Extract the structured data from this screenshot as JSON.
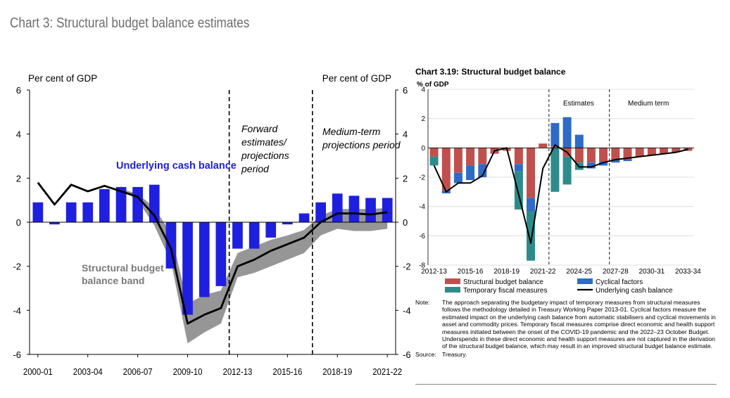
{
  "page_title": "Chart 3: Structural budget balance estimates",
  "chart_data": [
    {
      "type": "bar",
      "ylabel_left": "Per cent of GDP",
      "ylabel_right": "Per cent of GDP",
      "ylim": [
        -6,
        6
      ],
      "yticks": [
        -6,
        -4,
        -2,
        0,
        2,
        4,
        6
      ],
      "categories": [
        "2000-01",
        "2001-02",
        "2002-03",
        "2003-04",
        "2004-05",
        "2005-06",
        "2006-07",
        "2007-08",
        "2008-09",
        "2009-10",
        "2010-11",
        "2011-12",
        "2012-13",
        "2013-14",
        "2014-15",
        "2015-16",
        "2016-17",
        "2017-18",
        "2018-19",
        "2019-20",
        "2020-21",
        "2021-22"
      ],
      "xtick_labels": [
        "2000-01",
        "2003-04",
        "2006-07",
        "2009-10",
        "2012-13",
        "2015-16",
        "2018-19",
        "2021-22"
      ],
      "series": [
        {
          "name": "Underlying cash balance",
          "kind": "bar",
          "color": "#1f1fe0",
          "values": [
            0.9,
            -0.1,
            0.9,
            0.9,
            1.5,
            1.6,
            1.6,
            1.7,
            -2.1,
            -4.2,
            -3.4,
            -2.9,
            -1.2,
            -1.2,
            -0.7,
            -0.1,
            0.4,
            0.9,
            1.3,
            1.2,
            1.1,
            1.1
          ]
        },
        {
          "name": "Structural budget balance band",
          "kind": "band",
          "color": "#969696",
          "upper": [
            1.7,
            0.8,
            1.6,
            1.45,
            1.6,
            1.5,
            1.3,
            0.65,
            -0.5,
            -3.7,
            -3.3,
            -3.1,
            -1.4,
            -1.1,
            -0.8,
            -0.6,
            -0.35,
            0.3,
            0.6,
            0.6,
            0.6,
            0.65
          ],
          "lower": [
            1.7,
            0.8,
            1.6,
            1.45,
            1.6,
            1.5,
            1.0,
            -0.15,
            -1.8,
            -5.5,
            -5.0,
            -4.6,
            -2.5,
            -2.3,
            -2.0,
            -1.7,
            -1.4,
            -0.6,
            -0.3,
            -0.4,
            -0.4,
            -0.3
          ]
        },
        {
          "name": "",
          "kind": "line",
          "color": "#000000",
          "values": [
            1.8,
            0.8,
            1.7,
            1.4,
            1.65,
            1.4,
            1.15,
            0.3,
            -1.2,
            -4.6,
            -4.2,
            -3.9,
            -2.0,
            -1.7,
            -1.3,
            -1.0,
            -0.7,
            0.0,
            0.4,
            0.4,
            0.35,
            0.45
          ]
        }
      ],
      "annotations": [
        {
          "text": "Underlying cash balance",
          "color": "#1f1fe0"
        },
        {
          "text": "Structural budget balance band",
          "lines": [
            "Structural budget",
            "balance band"
          ],
          "color": "#7a7a7a"
        },
        {
          "text": "Forward estimates/ projections period",
          "lines": [
            "Forward",
            "estimates/",
            "projections",
            "period"
          ],
          "color": "#000000"
        },
        {
          "text": "Medium-term projections period",
          "lines": [
            "Medium-term",
            "projections period"
          ],
          "color": "#000000"
        }
      ],
      "dividers_after_index": [
        11,
        16
      ]
    },
    {
      "type": "bar",
      "title": "Chart 3.19: Structural budget balance",
      "ylabel": "% of GDP",
      "ylim": [
        -8,
        4
      ],
      "yticks": [
        -8,
        -6,
        -4,
        -2,
        0,
        2,
        4
      ],
      "categories": [
        "2012-13",
        "2013-14",
        "2014-15",
        "2015-16",
        "2016-17",
        "2017-18",
        "2018-19",
        "2019-20",
        "2020-21",
        "2021-22",
        "2022-23",
        "2023-24",
        "2024-25",
        "2025-26",
        "2026-27",
        "2027-28",
        "2028-29",
        "2029-30",
        "2030-31",
        "2031-32",
        "2032-33",
        "2033-34"
      ],
      "xtick_labels": [
        "2012-13",
        "2015-16",
        "2018-19",
        "2021-22",
        "2024-25",
        "2027-28",
        "2030-31",
        "2033-34"
      ],
      "series": [
        {
          "name": "Structural budget balance",
          "color": "#c0504d",
          "values": [
            -0.6,
            -2.9,
            -1.7,
            -1.2,
            -1.1,
            -0.4,
            -0.2,
            -1.1,
            -3.4,
            0.3,
            0.1,
            -0.6,
            -1.0,
            -1.0,
            -0.9,
            -0.8,
            -0.8,
            -0.6,
            -0.5,
            -0.4,
            -0.3,
            -0.2
          ]
        },
        {
          "name": "Cyclical factors",
          "color": "#2e6bc7",
          "values": [
            0.0,
            -0.2,
            -0.7,
            -1.0,
            -0.9,
            0.0,
            0.0,
            -0.5,
            -0.9,
            0.0,
            1.6,
            2.1,
            0.9,
            -0.4,
            -0.3,
            -0.2,
            -0.1,
            0.0,
            0.0,
            0.0,
            0.0,
            0.0
          ]
        },
        {
          "name": "Temporary fiscal measures",
          "color": "#2e8b8b",
          "values": [
            -0.6,
            0.0,
            0.0,
            0.0,
            0.0,
            0.0,
            0.0,
            -2.6,
            -3.4,
            0.0,
            -3.0,
            -1.9,
            -0.5,
            0.0,
            0.0,
            0.0,
            0.0,
            0.0,
            0.0,
            0.0,
            0.0,
            0.0
          ]
        },
        {
          "name": "Underlying cash balance",
          "kind": "line",
          "color": "#000000",
          "values": [
            -1.2,
            -3.0,
            -2.4,
            -2.4,
            -1.9,
            -0.2,
            0.0,
            -3.2,
            -6.5,
            -1.4,
            0.2,
            -0.3,
            -1.3,
            -1.3,
            -1.0,
            -0.8,
            -0.7,
            -0.6,
            -0.5,
            -0.4,
            -0.3,
            -0.1
          ]
        }
      ],
      "period_labels": [
        "Estimates",
        "Medium term"
      ],
      "dividers_after_index": [
        9,
        14
      ],
      "legend_position": "bottom"
    }
  ],
  "notes": {
    "note_key": "Note:",
    "note_text": "The approach separating the budgetary impact of temporary measures from structural measures follows the methodology detailed in Treasury Working Paper 2013-01. Cyclical factors measure the estimated impact on the underlying cash balance from automatic stabilisers and cyclical movements in asset and commodity prices. Temporary fiscal measures comprise direct economic and health support measures initiated between the onset of the COVID-19 pandemic and the 2022–23 October Budget. Underspends in these direct economic and health support measures are not captured in the derivation of the structural budget balance, which may result in an improved structural budget balance estimate.",
    "source_key": "Source:",
    "source_text": "Treasury."
  }
}
